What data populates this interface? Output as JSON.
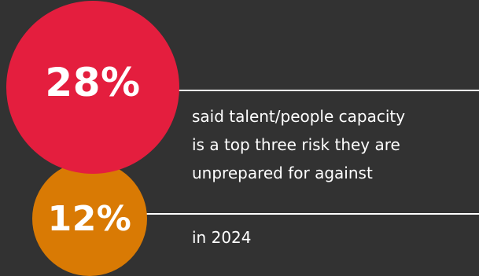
{
  "stats": [
    {
      "value": "28%",
      "color": "#e41e3e",
      "caption_lines": [
        "said talent/people capacity",
        "is a top three risk they are",
        "unprepared for against"
      ]
    },
    {
      "value": "12%",
      "color": "#d97a04",
      "caption": "in 2024"
    }
  ],
  "colors": {
    "background": "#323232",
    "text": "#ffffff",
    "divider": "#ffffff"
  }
}
